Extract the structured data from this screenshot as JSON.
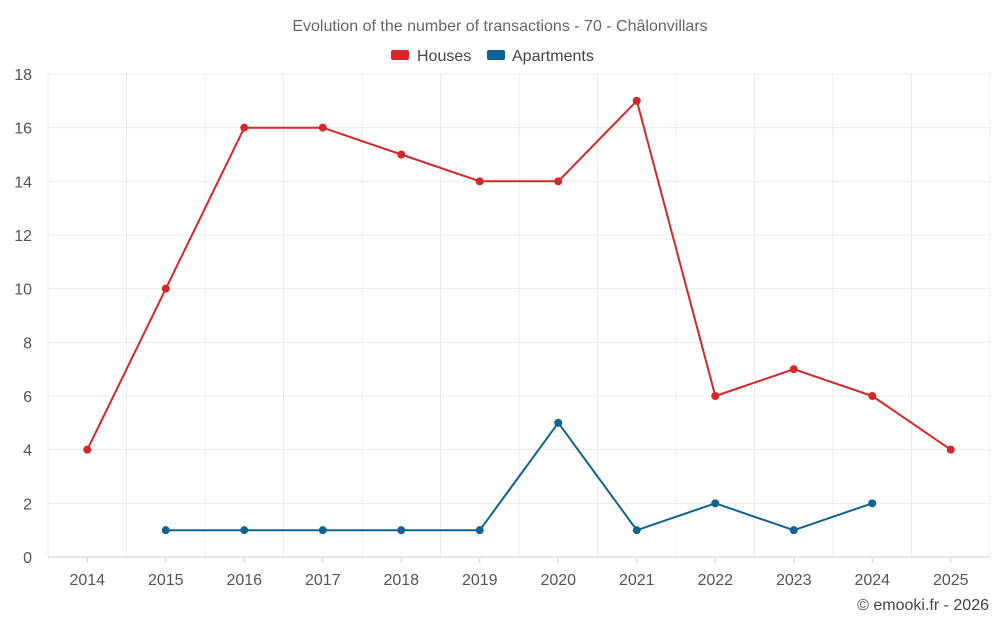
{
  "chart_data": {
    "type": "line",
    "title": "Evolution of the number of transactions - 70 - Châlonvillars",
    "categories": [
      "2014",
      "2015",
      "2016",
      "2017",
      "2018",
      "2019",
      "2020",
      "2021",
      "2022",
      "2023",
      "2024",
      "2025"
    ],
    "series": [
      {
        "name": "Houses",
        "color": "#d62728",
        "values": [
          4,
          10,
          16,
          16,
          15,
          14,
          14,
          17,
          6,
          7,
          6,
          4
        ]
      },
      {
        "name": "Apartments",
        "color": "#0e6396",
        "values": [
          null,
          1,
          1,
          1,
          1,
          1,
          5,
          1,
          2,
          1,
          2,
          null
        ]
      }
    ],
    "yticks": [
      0,
      2,
      4,
      6,
      8,
      10,
      12,
      14,
      16,
      18
    ],
    "ylim": [
      0,
      18
    ],
    "xlabel": "",
    "ylabel": "",
    "grid": true,
    "legend": "top-center"
  },
  "credit": "© emooki.fr - 2026"
}
